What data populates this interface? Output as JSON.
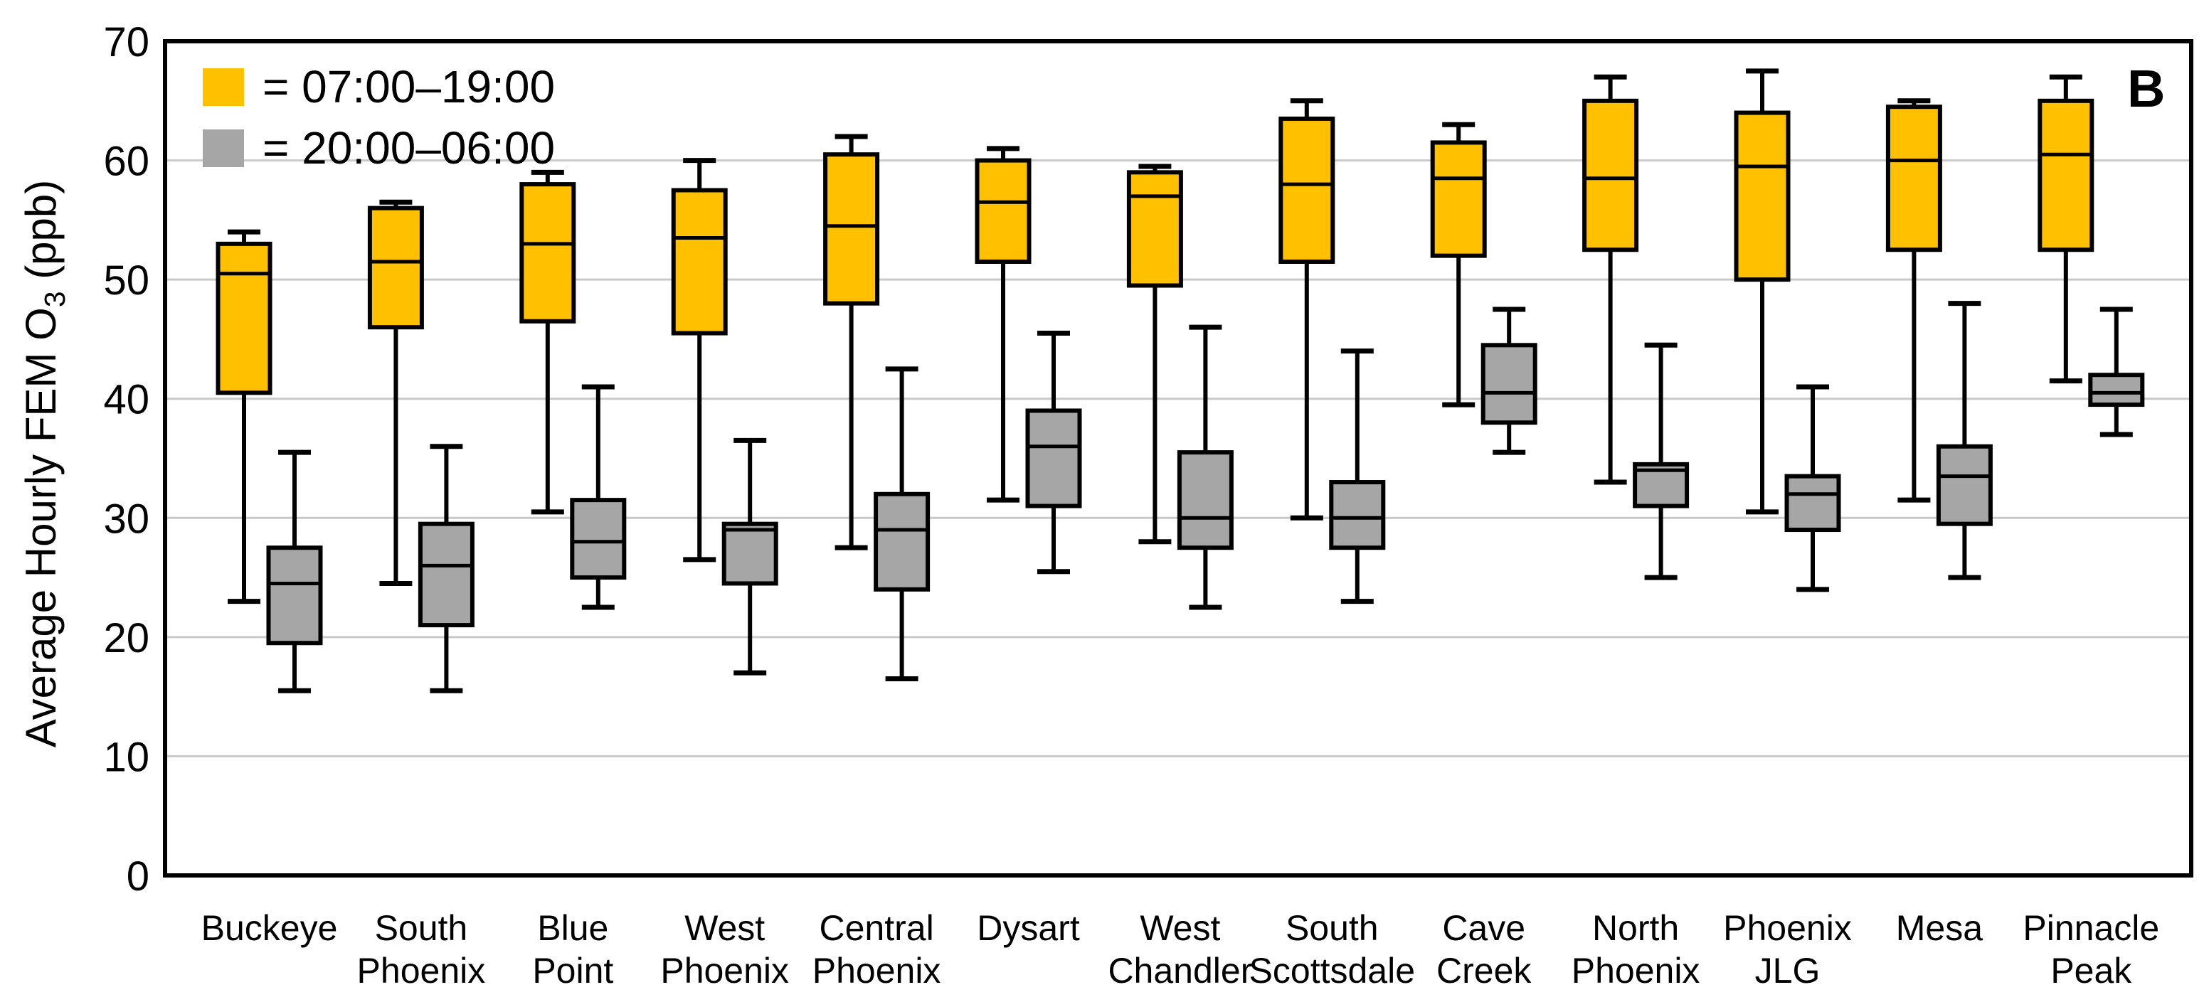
{
  "panel_label": "B",
  "legend": {
    "items": [
      {
        "id": "day",
        "label": "= 07:00–19:00",
        "color": "#FFC000"
      },
      {
        "id": "night",
        "label": "= 20:00–06:00",
        "color": "#A6A6A6"
      }
    ]
  },
  "y_axis": {
    "label_prefix": "Average Hourly FEM O",
    "label_subscript": "3",
    "label_suffix": " (ppb)",
    "min": 0,
    "max": 70,
    "step": 10,
    "ticks": [
      0,
      10,
      20,
      30,
      40,
      50,
      60,
      70
    ]
  },
  "chart_data": {
    "type": "boxplot",
    "title": "",
    "xlabel": "",
    "ylabel": "Average Hourly FEM O3 (ppb)",
    "ylim": [
      0,
      70
    ],
    "grid": true,
    "legend_position": "top-left",
    "panel_tag": "B",
    "series": [
      {
        "name": "07:00–19:00",
        "color": "#FFC000"
      },
      {
        "name": "20:00–06:00",
        "color": "#A6A6A6"
      }
    ],
    "categories": [
      "Buckeye",
      "South Phoenix",
      "Blue Point",
      "West Phoenix",
      "Central Phoenix",
      "Dysart",
      "West Chandler",
      "South Scottsdale",
      "Cave Creek",
      "North Phoenix",
      "Phoenix JLG",
      "Mesa",
      "Pinnacle Peak"
    ],
    "sites": [
      {
        "name": "Buckeye",
        "label_lines": [
          "Buckeye"
        ],
        "day": {
          "low": 23,
          "q1": 40.5,
          "median": 50.5,
          "q3": 53,
          "high": 54
        },
        "night": {
          "low": 15.5,
          "q1": 19.5,
          "median": 24.5,
          "q3": 27.5,
          "high": 35.5
        }
      },
      {
        "name": "South Phoenix",
        "label_lines": [
          "South",
          "Phoenix"
        ],
        "day": {
          "low": 24.5,
          "q1": 46,
          "median": 51.5,
          "q3": 56,
          "high": 56.5
        },
        "night": {
          "low": 15.5,
          "q1": 21,
          "median": 26,
          "q3": 29.5,
          "high": 36
        }
      },
      {
        "name": "Blue Point",
        "label_lines": [
          "Blue",
          "Point"
        ],
        "day": {
          "low": 30.5,
          "q1": 46.5,
          "median": 53,
          "q3": 58,
          "high": 59
        },
        "night": {
          "low": 22.5,
          "q1": 25,
          "median": 28,
          "q3": 31.5,
          "high": 41
        }
      },
      {
        "name": "West Phoenix",
        "label_lines": [
          "West",
          "Phoenix"
        ],
        "day": {
          "low": 26.5,
          "q1": 45.5,
          "median": 53.5,
          "q3": 57.5,
          "high": 60
        },
        "night": {
          "low": 17,
          "q1": 24.5,
          "median": 29,
          "q3": 29.5,
          "high": 36.5
        }
      },
      {
        "name": "Central Phoenix",
        "label_lines": [
          "Central",
          "Phoenix"
        ],
        "day": {
          "low": 27.5,
          "q1": 48,
          "median": 54.5,
          "q3": 60.5,
          "high": 62
        },
        "night": {
          "low": 16.5,
          "q1": 24,
          "median": 29,
          "q3": 32,
          "high": 42.5
        }
      },
      {
        "name": "Dysart",
        "label_lines": [
          "Dysart"
        ],
        "day": {
          "low": 31.5,
          "q1": 51.5,
          "median": 56.5,
          "q3": 60,
          "high": 61
        },
        "night": {
          "low": 25.5,
          "q1": 31,
          "median": 36,
          "q3": 39,
          "high": 45.5
        }
      },
      {
        "name": "West Chandler",
        "label_lines": [
          "West",
          "Chandler"
        ],
        "day": {
          "low": 28,
          "q1": 49.5,
          "median": 57,
          "q3": 59,
          "high": 59.5
        },
        "night": {
          "low": 22.5,
          "q1": 27.5,
          "median": 30,
          "q3": 35.5,
          "high": 46
        }
      },
      {
        "name": "South Scottsdale",
        "label_lines": [
          "South",
          "Scottsdale"
        ],
        "day": {
          "low": 30,
          "q1": 51.5,
          "median": 58,
          "q3": 63.5,
          "high": 65
        },
        "night": {
          "low": 23,
          "q1": 27.5,
          "median": 30,
          "q3": 33,
          "high": 44
        }
      },
      {
        "name": "Cave Creek",
        "label_lines": [
          "Cave",
          "Creek"
        ],
        "day": {
          "low": 39.5,
          "q1": 52,
          "median": 58.5,
          "q3": 61.5,
          "high": 63
        },
        "night": {
          "low": 35.5,
          "q1": 38,
          "median": 40.5,
          "q3": 44.5,
          "high": 47.5
        }
      },
      {
        "name": "North Phoenix",
        "label_lines": [
          "North",
          "Phoenix"
        ],
        "day": {
          "low": 33,
          "q1": 52.5,
          "median": 58.5,
          "q3": 65,
          "high": 67
        },
        "night": {
          "low": 25,
          "q1": 31,
          "median": 34,
          "q3": 34.5,
          "high": 44.5
        }
      },
      {
        "name": "Phoenix JLG",
        "label_lines": [
          "Phoenix",
          "JLG"
        ],
        "day": {
          "low": 30.5,
          "q1": 50,
          "median": 59.5,
          "q3": 64,
          "high": 67.5
        },
        "night": {
          "low": 24,
          "q1": 29,
          "median": 32,
          "q3": 33.5,
          "high": 41
        }
      },
      {
        "name": "Mesa",
        "label_lines": [
          "Mesa"
        ],
        "day": {
          "low": 31.5,
          "q1": 52.5,
          "median": 60,
          "q3": 64.5,
          "high": 65
        },
        "night": {
          "low": 25,
          "q1": 29.5,
          "median": 33.5,
          "q3": 36,
          "high": 48
        }
      },
      {
        "name": "Pinnacle Peak",
        "label_lines": [
          "Pinnacle",
          "Peak"
        ],
        "day": {
          "low": 41.5,
          "q1": 52.5,
          "median": 60.5,
          "q3": 65,
          "high": 67
        },
        "night": {
          "low": 37,
          "q1": 39.5,
          "median": 40.5,
          "q3": 42,
          "high": 47.5
        }
      }
    ],
    "colors": {
      "day_fill": "#FFC000",
      "night_fill": "#A6A6A6",
      "ink": "#000000",
      "gridline": "#C9C9C9",
      "background": "#FFFFFF"
    }
  }
}
